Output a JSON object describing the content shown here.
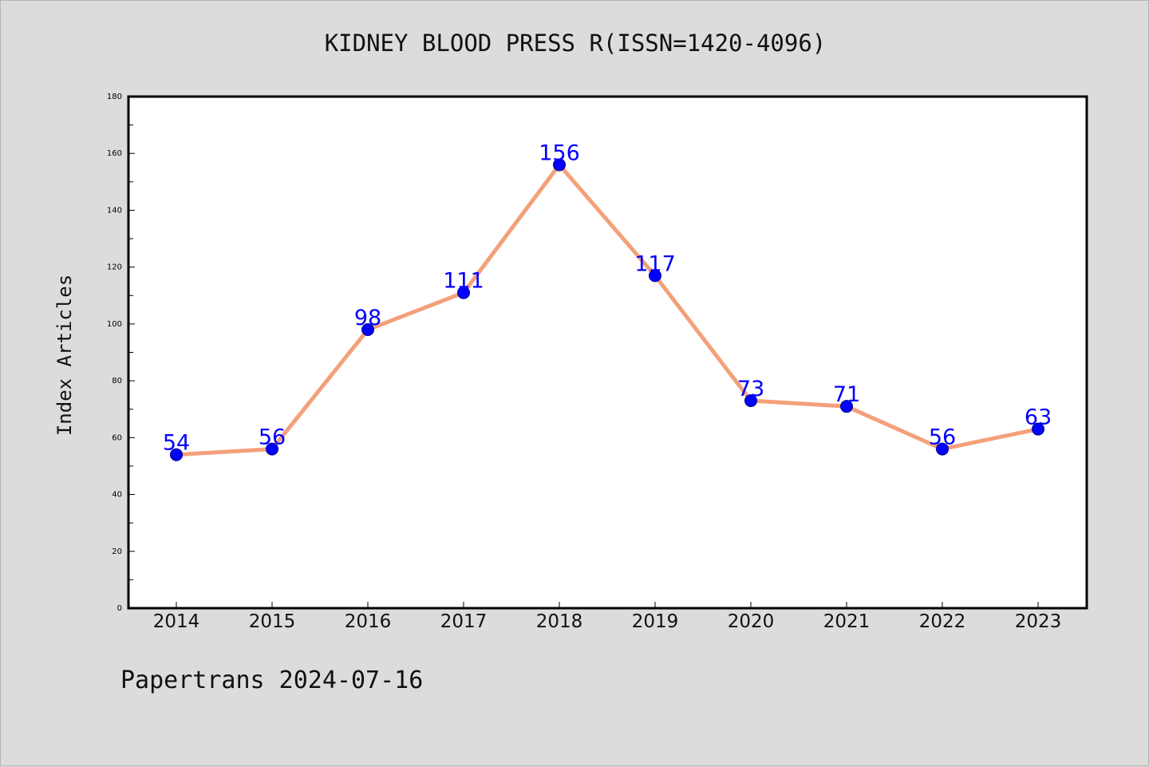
{
  "chart_data": {
    "type": "line",
    "title": "KIDNEY BLOOD PRESS R(ISSN=1420-4096)",
    "xlabel": "",
    "ylabel": "Index Articles",
    "categories": [
      "2014",
      "2015",
      "2016",
      "2017",
      "2018",
      "2019",
      "2020",
      "2021",
      "2022",
      "2023"
    ],
    "series": [
      {
        "values": [
          54,
          56,
          98,
          111,
          156,
          117,
          73,
          71,
          56,
          63
        ]
      }
    ],
    "ylim": [
      0,
      180
    ],
    "yticks": [
      0,
      20,
      40,
      60,
      80,
      100,
      120,
      140,
      160,
      180
    ],
    "line_color": "#f4a07a",
    "marker_color": "#0000ff",
    "label_color": "#0000ff",
    "grid": false,
    "legend": "none"
  },
  "footer": "Papertrans 2024-07-16"
}
